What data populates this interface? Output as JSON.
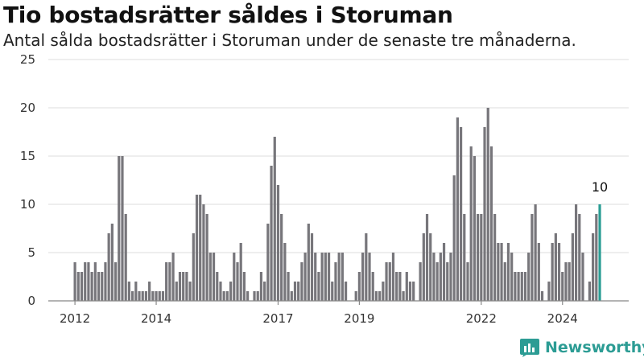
{
  "title": "Tio bostadsrätter såldes i Storuman",
  "subtitle": "Antal sålda bostadsrätter i Storuman under de senaste tre månaderna.",
  "brand": {
    "name": "Newsworthy",
    "icon": "newsworthy-logo-icon",
    "color": "#2c9c94"
  },
  "colors": {
    "bar": "#77767b",
    "highlight": "#2a9d94",
    "grid": "#dcdcdc",
    "axis": "#888888"
  },
  "chart_data": {
    "type": "bar",
    "title": "Tio bostadsrätter såldes i Storuman",
    "subtitle": "Antal sålda bostadsrätter i Storuman under de senaste tre månaderna.",
    "xlabel": "",
    "ylabel": "",
    "ylim": [
      0,
      25
    ],
    "yticks": [
      0,
      5,
      10,
      15,
      20,
      25
    ],
    "grid": true,
    "x_start": "2012-01",
    "x_ticks": [
      {
        "label": "2012",
        "index": 0
      },
      {
        "label": "2014",
        "index": 24
      },
      {
        "label": "2017",
        "index": 60
      },
      {
        "label": "2019",
        "index": 84
      },
      {
        "label": "2022",
        "index": 120
      },
      {
        "label": "2024",
        "index": 144
      }
    ],
    "values": [
      4,
      3,
      3,
      4,
      4,
      3,
      4,
      3,
      3,
      4,
      7,
      8,
      4,
      15,
      15,
      9,
      2,
      1,
      2,
      1,
      1,
      1,
      2,
      1,
      1,
      1,
      1,
      4,
      4,
      5,
      2,
      3,
      3,
      3,
      2,
      7,
      11,
      11,
      10,
      9,
      5,
      5,
      3,
      2,
      1,
      1,
      2,
      5,
      4,
      6,
      3,
      1,
      0,
      1,
      1,
      3,
      2,
      8,
      14,
      17,
      12,
      9,
      6,
      3,
      1,
      2,
      2,
      4,
      5,
      8,
      7,
      5,
      3,
      5,
      5,
      5,
      2,
      4,
      5,
      5,
      2,
      0,
      0,
      1,
      3,
      5,
      7,
      5,
      3,
      1,
      1,
      2,
      4,
      4,
      5,
      3,
      3,
      1,
      3,
      2,
      2,
      0,
      4,
      7,
      9,
      7,
      5,
      4,
      5,
      6,
      4,
      5,
      13,
      19,
      18,
      9,
      4,
      16,
      15,
      9,
      9,
      18,
      20,
      16,
      9,
      6,
      6,
      4,
      6,
      5,
      3,
      3,
      3,
      3,
      5,
      9,
      10,
      6,
      1,
      0,
      2,
      6,
      7,
      6,
      3,
      4,
      4,
      7,
      10,
      9,
      5,
      0,
      2,
      7,
      9,
      10
    ],
    "highlight_last": true,
    "annotation": {
      "index": 155,
      "text": "10"
    }
  }
}
